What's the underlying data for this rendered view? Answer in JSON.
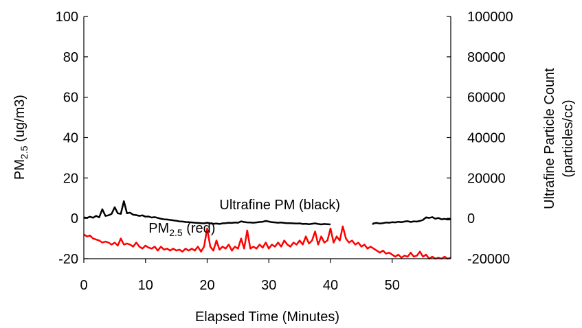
{
  "chart_data": {
    "type": "line",
    "title": "",
    "xlabel": "Elapsed Time (Minutes)",
    "ylabel_left": {
      "main": "PM",
      "sub": "2.5",
      "rest": " (ug/m3)"
    },
    "ylabel_right": [
      "Ultrafine Particle Count",
      "(particles/cc)"
    ],
    "xlim": [
      0,
      59.5
    ],
    "ylim_left": [
      -20,
      100
    ],
    "ylim_right": [
      -20000,
      100000
    ],
    "x_ticks": [
      0,
      10,
      20,
      30,
      40,
      50
    ],
    "y_left_ticks": [
      -20,
      0,
      20,
      40,
      60,
      80,
      100
    ],
    "y_right_ticks": [
      -20000,
      0,
      20000,
      40000,
      60000,
      80000,
      100000
    ],
    "grid": false,
    "annotations": [
      {
        "text": "Ultrafine PM (black)",
        "x": 22,
        "y": 4.5
      },
      {
        "main": "PM",
        "sub": "2.5",
        "rest": " (red)",
        "x": 10.5,
        "y": -7
      }
    ],
    "series": [
      {
        "axis": "left",
        "color": "#ff0000",
        "points": [
          [
            0,
            -8
          ],
          [
            0.5,
            -9
          ],
          [
            1,
            -8.5
          ],
          [
            1.5,
            -10
          ],
          [
            2,
            -10.5
          ],
          [
            2.5,
            -11
          ],
          [
            3,
            -12
          ],
          [
            3.5,
            -11.5
          ],
          [
            4,
            -12
          ],
          [
            4.5,
            -13
          ],
          [
            5,
            -12
          ],
          [
            5.5,
            -13.5
          ],
          [
            6,
            -10
          ],
          [
            6.5,
            -13
          ],
          [
            7,
            -12.5
          ],
          [
            7.5,
            -13
          ],
          [
            8,
            -14
          ],
          [
            8.5,
            -12
          ],
          [
            9,
            -14
          ],
          [
            9.5,
            -15
          ],
          [
            10,
            -13.5
          ],
          [
            10.5,
            -14.5
          ],
          [
            11,
            -15
          ],
          [
            11.5,
            -14
          ],
          [
            12,
            -16
          ],
          [
            12.5,
            -14
          ],
          [
            13,
            -15.5
          ],
          [
            13.5,
            -15
          ],
          [
            14,
            -16
          ],
          [
            14.5,
            -15
          ],
          [
            15,
            -16
          ],
          [
            15.5,
            -15.5
          ],
          [
            16,
            -16.5
          ],
          [
            16.5,
            -15
          ],
          [
            17,
            -16
          ],
          [
            17.5,
            -15
          ],
          [
            18,
            -16
          ],
          [
            18.5,
            -14
          ],
          [
            19,
            -16.5
          ],
          [
            19.5,
            -14
          ],
          [
            20,
            -5
          ],
          [
            20.5,
            -14
          ],
          [
            21,
            -16
          ],
          [
            21.5,
            -11
          ],
          [
            22,
            -15.5
          ],
          [
            22.5,
            -14
          ],
          [
            23,
            -15
          ],
          [
            23.5,
            -13
          ],
          [
            24,
            -16
          ],
          [
            24.5,
            -14
          ],
          [
            25,
            -15
          ],
          [
            25.5,
            -10
          ],
          [
            26,
            -15
          ],
          [
            26.5,
            -6
          ],
          [
            27,
            -15
          ],
          [
            27.5,
            -14
          ],
          [
            28,
            -15
          ],
          [
            28.5,
            -13
          ],
          [
            29,
            -14.5
          ],
          [
            29.5,
            -12
          ],
          [
            30,
            -15
          ],
          [
            30.5,
            -13
          ],
          [
            31,
            -14
          ],
          [
            31.5,
            -12
          ],
          [
            32,
            -14
          ],
          [
            32.5,
            -11
          ],
          [
            33,
            -13
          ],
          [
            33.5,
            -14
          ],
          [
            34,
            -12
          ],
          [
            34.5,
            -13
          ],
          [
            35,
            -11
          ],
          [
            35.5,
            -13
          ],
          [
            36,
            -9
          ],
          [
            36.5,
            -12.5
          ],
          [
            37,
            -11
          ],
          [
            37.5,
            -6.5
          ],
          [
            38,
            -13
          ],
          [
            38.5,
            -9
          ],
          [
            39,
            -12
          ],
          [
            39.5,
            -11
          ],
          [
            40,
            -5
          ],
          [
            40.5,
            -12
          ],
          [
            41,
            -9
          ],
          [
            41.5,
            -11
          ],
          [
            42,
            -4
          ],
          [
            42.5,
            -10
          ],
          [
            43,
            -12
          ],
          [
            43.5,
            -11
          ],
          [
            44,
            -13
          ],
          [
            44.5,
            -12
          ],
          [
            45,
            -14
          ],
          [
            45.5,
            -13
          ],
          [
            46,
            -15
          ],
          [
            46.5,
            -14
          ],
          [
            47,
            -15
          ],
          [
            47.5,
            -16
          ],
          [
            48,
            -17
          ],
          [
            48.5,
            -16
          ],
          [
            49,
            -17.5
          ],
          [
            49.5,
            -17
          ],
          [
            50,
            -18
          ],
          [
            50.5,
            -19
          ],
          [
            51,
            -18
          ],
          [
            51.5,
            -19.5
          ],
          [
            52,
            -18.5
          ],
          [
            52.5,
            -19
          ],
          [
            53,
            -17
          ],
          [
            53.5,
            -19
          ],
          [
            54,
            -18.5
          ],
          [
            54.5,
            -16.5
          ],
          [
            55,
            -19
          ],
          [
            55.5,
            -18
          ],
          [
            56,
            -20
          ],
          [
            56.5,
            -19
          ],
          [
            57,
            -20
          ],
          [
            57.5,
            -19.5
          ],
          [
            58,
            -20
          ],
          [
            58.5,
            -19
          ],
          [
            59,
            -20
          ],
          [
            59.5,
            -19.5
          ]
        ]
      },
      {
        "axis": "left",
        "color": "#000000",
        "points": [
          [
            0,
            0.5
          ],
          [
            0.5,
            0.2
          ],
          [
            1,
            0.8
          ],
          [
            1.5,
            0.3
          ],
          [
            2,
            1.2
          ],
          [
            2.5,
            0.5
          ],
          [
            3,
            4.5
          ],
          [
            3.5,
            1.2
          ],
          [
            4,
            1.5
          ],
          [
            4.5,
            2.2
          ],
          [
            5,
            5.5
          ],
          [
            5.5,
            2.5
          ],
          [
            6,
            2.2
          ],
          [
            6.5,
            8.5
          ],
          [
            7,
            2.5
          ],
          [
            7.5,
            2.8
          ],
          [
            8,
            1.8
          ],
          [
            8.5,
            1.6
          ],
          [
            9,
            1.2
          ],
          [
            9.5,
            1.5
          ],
          [
            10,
            0.8
          ],
          [
            10.5,
            0.9
          ],
          [
            11,
            0.4
          ],
          [
            11.5,
            0.6
          ],
          [
            12,
            0.2
          ],
          [
            12.5,
            -0.2
          ],
          [
            13,
            -0.5
          ],
          [
            13.5,
            -0.6
          ],
          [
            14,
            -0.8
          ],
          [
            14.5,
            -1
          ],
          [
            15,
            -1.2
          ],
          [
            15.5,
            -1.5
          ],
          [
            16,
            -1.6
          ],
          [
            16.5,
            -1.8
          ],
          [
            17,
            -1.9
          ],
          [
            17.5,
            -2
          ],
          [
            18,
            -2.2
          ],
          [
            18.5,
            -2.3
          ],
          [
            19,
            -2.4
          ],
          [
            19.5,
            -2.5
          ],
          [
            20,
            -2.2
          ],
          [
            20.5,
            -2.5
          ],
          [
            21,
            -2.7
          ],
          [
            21.5,
            -2.6
          ],
          [
            22,
            -2.8
          ],
          [
            22.5,
            -2.5
          ],
          [
            23,
            -2.4
          ],
          [
            23.5,
            -2.2
          ],
          [
            24,
            -2.3
          ],
          [
            24.5,
            -2.1
          ],
          [
            25,
            -2.2
          ],
          [
            25.5,
            -1.5
          ],
          [
            26,
            -1.8
          ],
          [
            26.5,
            -2
          ],
          [
            27,
            -2.1
          ],
          [
            27.5,
            -2.2
          ],
          [
            28,
            -2
          ],
          [
            28.5,
            -1.8
          ],
          [
            29,
            -1.7
          ],
          [
            29.5,
            -1.3
          ],
          [
            30,
            -1.6
          ],
          [
            30.5,
            -1.9
          ],
          [
            31,
            -2
          ],
          [
            31.5,
            -2.2
          ],
          [
            32,
            -2.1
          ],
          [
            32.5,
            -2.3
          ],
          [
            33,
            -2.4
          ],
          [
            33.5,
            -2.4
          ],
          [
            34,
            -2.5
          ],
          [
            34.5,
            -2.6
          ],
          [
            35,
            -2.5
          ],
          [
            35.5,
            -2.8
          ],
          [
            36,
            -2.7
          ],
          [
            36.5,
            -2.9
          ],
          [
            37,
            -2.7
          ],
          [
            37.5,
            -2.5
          ],
          [
            38,
            -2.8
          ],
          [
            38.5,
            -3
          ],
          [
            39,
            -2.8
          ],
          [
            39.5,
            -2.9
          ],
          [
            40,
            -3
          ]
        ]
      },
      {
        "axis": "left",
        "color": "#000000",
        "points": [
          [
            46.8,
            -3
          ],
          [
            47,
            -2.5
          ],
          [
            47.5,
            -2.3
          ],
          [
            48,
            -2.6
          ],
          [
            48.5,
            -2.4
          ],
          [
            49,
            -2.1
          ],
          [
            49.5,
            -2.2
          ],
          [
            50,
            -1.9
          ],
          [
            50.5,
            -2
          ],
          [
            51,
            -1.7
          ],
          [
            51.5,
            -1.9
          ],
          [
            52,
            -1.6
          ],
          [
            52.5,
            -1.4
          ],
          [
            53,
            -1.8
          ],
          [
            53.5,
            -1.5
          ],
          [
            54,
            -1.6
          ],
          [
            54.5,
            -1.3
          ],
          [
            55,
            -0.8
          ],
          [
            55.5,
            0.5
          ],
          [
            56,
            0.2
          ],
          [
            56.5,
            0.6
          ],
          [
            57,
            -0.2
          ],
          [
            57.5,
            0.2
          ],
          [
            58,
            -0.5
          ],
          [
            58.5,
            -0.3
          ],
          [
            59,
            -0.6
          ],
          [
            59.5,
            -0.5
          ]
        ]
      }
    ]
  }
}
